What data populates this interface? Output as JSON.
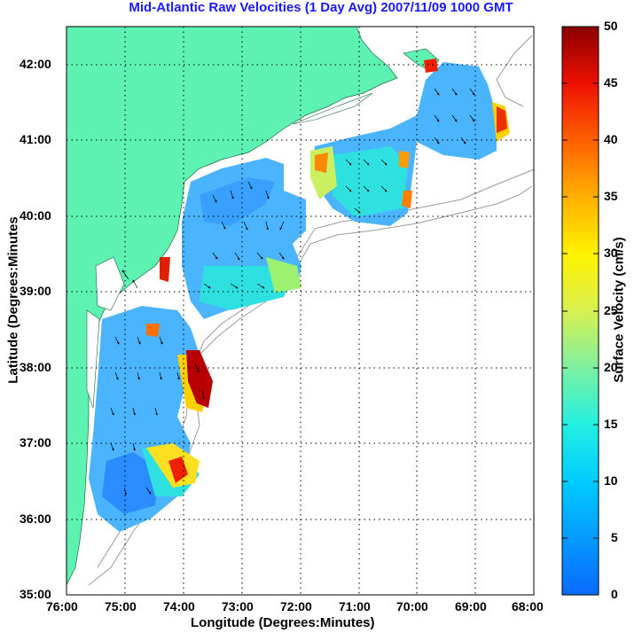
{
  "title": "Mid-Atlantic Raw Velocities (1 Day Avg) 2007/11/09 1000 GMT",
  "xlabel": "Longitude (Degrees:Minutes)",
  "ylabel": "Latitude (Degrees:Minutes",
  "colorbar_label": "Surface Velocity (cm/s)",
  "colors": {
    "land": "#5ef2b2",
    "ocean": "#ffffff",
    "title": "#1a1aff",
    "isobath": "#9a9a9a"
  },
  "chart_data": {
    "type": "heatmap",
    "x_ticks": [
      "76:00",
      "75:00",
      "74:00",
      "73:00",
      "72:00",
      "71:00",
      "70:00",
      "69:00",
      "68:00"
    ],
    "y_ticks": [
      "42:00",
      "41:00",
      "40:00",
      "39:00",
      "38:00",
      "37:00",
      "36:00",
      "35:00"
    ],
    "xlim": [
      -76,
      -68
    ],
    "ylim": [
      35,
      42.5
    ],
    "grid": true,
    "colorbar": {
      "min": 0,
      "max": 50,
      "ticks": [
        "50",
        "45",
        "40",
        "35",
        "30",
        "25",
        "20",
        "15",
        "10",
        "5",
        "0"
      ]
    },
    "hotspots": [
      {
        "lon": -73.75,
        "lat": 37.75,
        "speed": 50
      },
      {
        "lon": -74.0,
        "lat": 36.7,
        "speed": 44
      },
      {
        "lon": -74.4,
        "lat": 39.05,
        "speed": 45
      },
      {
        "lon": -68.6,
        "lat": 41.3,
        "speed": 40
      },
      {
        "lon": -69.8,
        "lat": 42.0,
        "speed": 42
      }
    ]
  }
}
